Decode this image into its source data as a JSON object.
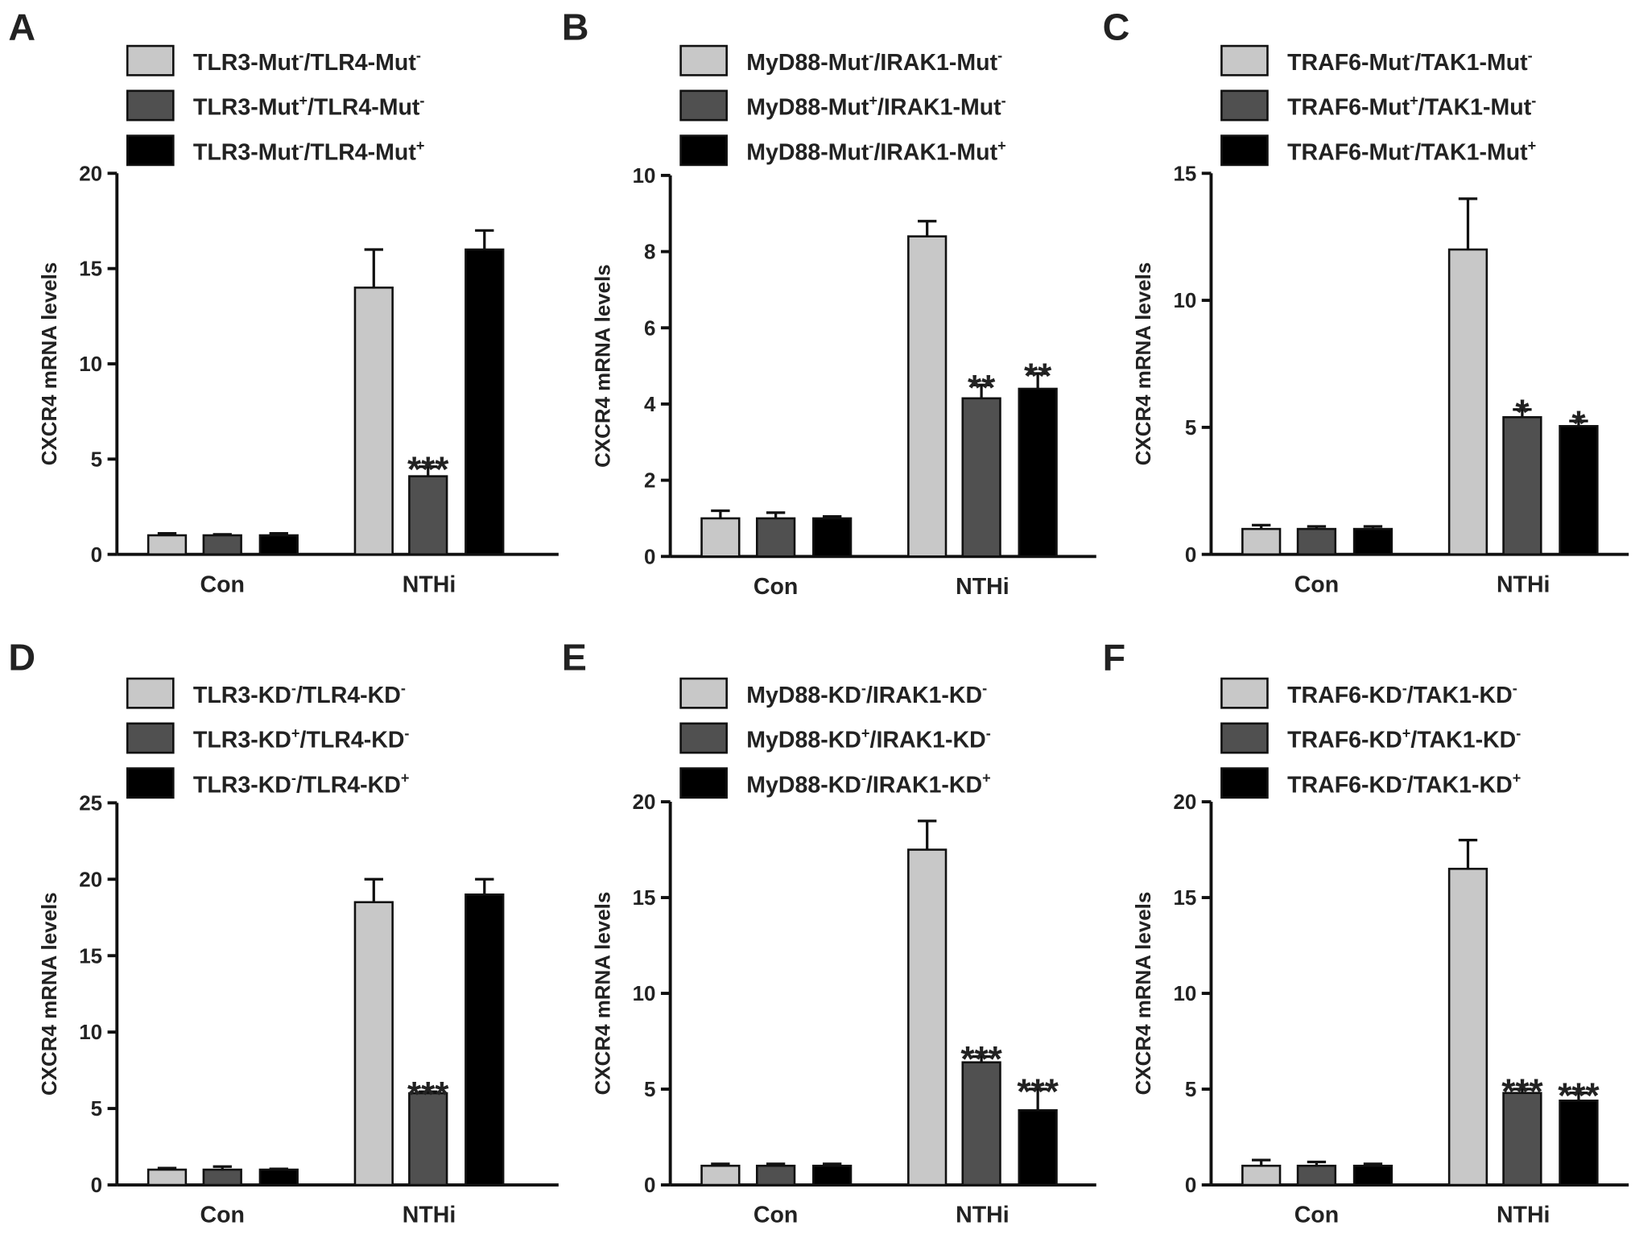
{
  "colors": {
    "group1": "#c8c8c8",
    "group2": "#505050",
    "group3": "#000000",
    "stroke": "#111111"
  },
  "chart_data": [
    {
      "panel": "A",
      "type": "bar",
      "categories": [
        "Con",
        "NTHi"
      ],
      "ylabel": "CXCR4 mRNA levels",
      "ylim": [
        0,
        20
      ],
      "yticks": [
        0,
        5,
        10,
        15,
        20
      ],
      "series": [
        {
          "name": {
            "a": "TLR3-Mut",
            "a_sup": "-",
            "b": "/TLR4-Mut",
            "b_sup": "-"
          },
          "values": [
            1,
            14
          ],
          "errors": [
            0.1,
            2
          ],
          "sig": [
            "",
            ""
          ]
        },
        {
          "name": {
            "a": "TLR3-Mut",
            "a_sup": "+",
            "b": "/TLR4-Mut",
            "b_sup": "-"
          },
          "values": [
            1,
            4.1
          ],
          "errors": [
            0.05,
            0.5
          ],
          "sig": [
            "",
            "***"
          ]
        },
        {
          "name": {
            "a": "TLR3-Mut",
            "a_sup": "-",
            "b": "/TLR4-Mut",
            "b_sup": "+"
          },
          "values": [
            1,
            16
          ],
          "errors": [
            0.1,
            1
          ],
          "sig": [
            "",
            ""
          ]
        }
      ]
    },
    {
      "panel": "B",
      "type": "bar",
      "categories": [
        "Con",
        "NTHi"
      ],
      "ylabel": "CXCR4 mRNA levels",
      "ylim": [
        0,
        10
      ],
      "yticks": [
        0,
        2,
        4,
        6,
        8,
        10
      ],
      "series": [
        {
          "name": {
            "a": "MyD88-Mut",
            "a_sup": "-",
            "b": "/IRAK1-Mut",
            "b_sup": "-"
          },
          "values": [
            1,
            8.4
          ],
          "errors": [
            0.2,
            0.4
          ],
          "sig": [
            "",
            ""
          ]
        },
        {
          "name": {
            "a": "MyD88-Mut",
            "a_sup": "+",
            "b": "/IRAK1-Mut",
            "b_sup": "-"
          },
          "values": [
            1,
            4.15
          ],
          "errors": [
            0.15,
            0.35
          ],
          "sig": [
            "",
            "**"
          ]
        },
        {
          "name": {
            "a": "MyD88-Mut",
            "a_sup": "-",
            "b": "/IRAK1-Mut",
            "b_sup": "+"
          },
          "values": [
            1,
            4.4
          ],
          "errors": [
            0.05,
            0.4
          ],
          "sig": [
            "",
            "**"
          ]
        }
      ]
    },
    {
      "panel": "C",
      "type": "bar",
      "categories": [
        "Con",
        "NTHi"
      ],
      "ylabel": "CXCR4 mRNA levels",
      "ylim": [
        0,
        15
      ],
      "yticks": [
        0,
        5,
        10,
        15
      ],
      "series": [
        {
          "name": {
            "a": "TRAF6-Mut",
            "a_sup": "-",
            "b": "/TAK1-Mut",
            "b_sup": "-"
          },
          "values": [
            1,
            12
          ],
          "errors": [
            0.15,
            2
          ],
          "sig": [
            "",
            ""
          ]
        },
        {
          "name": {
            "a": "TRAF6-Mut",
            "a_sup": "+",
            "b": "/TAK1-Mut",
            "b_sup": "-"
          },
          "values": [
            1,
            5.4
          ],
          "errors": [
            0.1,
            0.3
          ],
          "sig": [
            "",
            "*"
          ]
        },
        {
          "name": {
            "a": "TRAF6-Mut",
            "a_sup": "-",
            "b": "/TAK1-Mut",
            "b_sup": "+"
          },
          "values": [
            1,
            5.05
          ],
          "errors": [
            0.1,
            0.2
          ],
          "sig": [
            "",
            "*"
          ]
        }
      ]
    },
    {
      "panel": "D",
      "type": "bar",
      "categories": [
        "Con",
        "NTHi"
      ],
      "ylabel": "CXCR4 mRNA levels",
      "ylim": [
        0,
        25
      ],
      "yticks": [
        0,
        5,
        10,
        15,
        20,
        25
      ],
      "series": [
        {
          "name": {
            "a": "TLR3-KD",
            "a_sup": "-",
            "b": "/TLR4-KD",
            "b_sup": "-"
          },
          "values": [
            1,
            18.5
          ],
          "errors": [
            0.1,
            1.5
          ],
          "sig": [
            "",
            ""
          ]
        },
        {
          "name": {
            "a": "TLR3-KD",
            "a_sup": "+",
            "b": "/TLR4-KD",
            "b_sup": "-"
          },
          "values": [
            1,
            6
          ],
          "errors": [
            0.2,
            0.1
          ],
          "sig": [
            "",
            "***"
          ]
        },
        {
          "name": {
            "a": "TLR3-KD",
            "a_sup": "-",
            "b": "/TLR4-KD",
            "b_sup": "+"
          },
          "values": [
            1,
            19
          ],
          "errors": [
            0.05,
            1
          ],
          "sig": [
            "",
            ""
          ]
        }
      ]
    },
    {
      "panel": "E",
      "type": "bar",
      "categories": [
        "Con",
        "NTHi"
      ],
      "ylabel": "CXCR4 mRNA levels",
      "ylim": [
        0,
        20
      ],
      "yticks": [
        0,
        5,
        10,
        15,
        20
      ],
      "series": [
        {
          "name": {
            "a": "MyD88-KD",
            "a_sup": "-",
            "b": "/IRAK1-KD",
            "b_sup": "-"
          },
          "values": [
            1,
            17.5
          ],
          "errors": [
            0.1,
            1.5
          ],
          "sig": [
            "",
            ""
          ]
        },
        {
          "name": {
            "a": "MyD88-KD",
            "a_sup": "+",
            "b": "/IRAK1-KD",
            "b_sup": "-"
          },
          "values": [
            1,
            6.4
          ],
          "errors": [
            0.1,
            0.3
          ],
          "sig": [
            "",
            "***"
          ]
        },
        {
          "name": {
            "a": "MyD88-KD",
            "a_sup": "-",
            "b": "/IRAK1-KD",
            "b_sup": "+"
          },
          "values": [
            1,
            3.9
          ],
          "errors": [
            0.1,
            1.1
          ],
          "sig": [
            "",
            "***"
          ]
        }
      ]
    },
    {
      "panel": "F",
      "type": "bar",
      "categories": [
        "Con",
        "NTHi"
      ],
      "ylabel": "CXCR4 mRNA levels",
      "ylim": [
        0,
        20
      ],
      "yticks": [
        0,
        5,
        10,
        15,
        20
      ],
      "series": [
        {
          "name": {
            "a": "TRAF6-KD",
            "a_sup": "-",
            "b": "/TAK1-KD",
            "b_sup": "-"
          },
          "values": [
            1,
            16.5
          ],
          "errors": [
            0.3,
            1.5
          ],
          "sig": [
            "",
            ""
          ]
        },
        {
          "name": {
            "a": "TRAF6-KD",
            "a_sup": "+",
            "b": "/TAK1-KD",
            "b_sup": "-"
          },
          "values": [
            1,
            4.8
          ],
          "errors": [
            0.2,
            0.2
          ],
          "sig": [
            "",
            "***"
          ]
        },
        {
          "name": {
            "a": "TRAF6-KD",
            "a_sup": "-",
            "b": "/TAK1-KD",
            "b_sup": "+"
          },
          "values": [
            1,
            4.4
          ],
          "errors": [
            0.1,
            0.4
          ],
          "sig": [
            "",
            "***"
          ]
        }
      ]
    }
  ]
}
